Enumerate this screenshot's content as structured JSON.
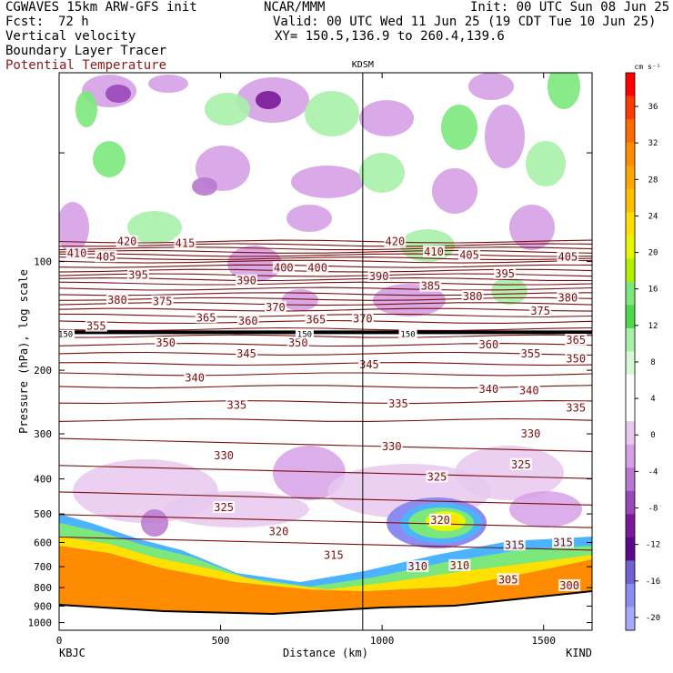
{
  "header": {
    "model": "CGWAVES 15km ARW-GFS init",
    "org": "NCAR/MMM",
    "init": "Init: 00 UTC Sun 08 Jun 25",
    "fcst_label": "Fcst:",
    "fcst_value": "72 h",
    "valid": "Valid: 00 UTC Wed 11 Jun 25 (19 CDT Tue 10 Jun 25)",
    "xy": "XY= 150.5,136.9 to 260.4,139.6",
    "field1": "Vertical velocity",
    "field2": "Boundary Layer Tracer",
    "field3": "Potential Temperature",
    "field3_color": "#8b1a1a"
  },
  "chart_data": {
    "type": "heatmap",
    "title": "KDSM",
    "xlabel": "Distance (km)",
    "ylabel": "Pressure (hPa), log scale",
    "x_ticks": [
      0,
      500,
      1000,
      1500
    ],
    "xlim": [
      0,
      1650
    ],
    "y_ticks": [
      100,
      200,
      300,
      400,
      500,
      600,
      700,
      800,
      900,
      1000
    ],
    "ylim": [
      1050,
      30
    ],
    "y_scale": "log",
    "x_start_label": "KBJC",
    "x_end_label": "KIND",
    "marker_line_x_km": 940,
    "colorbar": {
      "unit": "cm s⁻¹",
      "ticks": [
        36,
        32,
        28,
        24,
        20,
        16,
        12,
        8,
        4,
        0,
        -4,
        -8,
        -12,
        -16,
        -20
      ],
      "colors": [
        "#ff0000",
        "#ff3a00",
        "#ff6a00",
        "#ff8c00",
        "#ffa500",
        "#ffbf00",
        "#ffe000",
        "#e6f500",
        "#b0f000",
        "#7ce87c",
        "#4cd94c",
        "#a9f0a9",
        "#d8f8d8",
        "#ffffff",
        "#ffffff",
        "#e8c8f0",
        "#d6a0e6",
        "#b878d0",
        "#9848b8",
        "#7a1a9a",
        "#5a0a88",
        "#7060d0",
        "#8c8cf0",
        "#a8a8ff"
      ]
    },
    "theta_labels": [
      {
        "v": "420",
        "x": 210,
        "p": 88
      },
      {
        "v": "415",
        "x": 390,
        "p": 89
      },
      {
        "v": "410",
        "x": 55,
        "p": 95
      },
      {
        "v": "405",
        "x": 145,
        "p": 97
      },
      {
        "v": "400",
        "x": 695,
        "p": 104
      },
      {
        "v": "400",
        "x": 800,
        "p": 104
      },
      {
        "v": "395",
        "x": 245,
        "p": 109
      },
      {
        "v": "390",
        "x": 580,
        "p": 113
      },
      {
        "v": "380",
        "x": 180,
        "p": 128
      },
      {
        "v": "375",
        "x": 320,
        "p": 129
      },
      {
        "v": "370",
        "x": 670,
        "p": 134
      },
      {
        "v": "365",
        "x": 455,
        "p": 143
      },
      {
        "v": "360",
        "x": 585,
        "p": 146
      },
      {
        "v": "365",
        "x": 795,
        "p": 145
      },
      {
        "v": "370",
        "x": 940,
        "p": 144
      },
      {
        "v": "355",
        "x": 115,
        "p": 151
      },
      {
        "v": "350",
        "x": 330,
        "p": 168
      },
      {
        "v": "345",
        "x": 580,
        "p": 180
      },
      {
        "v": "350",
        "x": 740,
        "p": 168
      },
      {
        "v": "420",
        "x": 1040,
        "p": 88
      },
      {
        "v": "410",
        "x": 1160,
        "p": 94
      },
      {
        "v": "405",
        "x": 1270,
        "p": 96
      },
      {
        "v": "395",
        "x": 1380,
        "p": 108
      },
      {
        "v": "405",
        "x": 1575,
        "p": 97
      },
      {
        "v": "390",
        "x": 990,
        "p": 110
      },
      {
        "v": "385",
        "x": 1150,
        "p": 117
      },
      {
        "v": "380",
        "x": 1280,
        "p": 125
      },
      {
        "v": "375",
        "x": 1490,
        "p": 137
      },
      {
        "v": "380",
        "x": 1575,
        "p": 126
      },
      {
        "v": "365",
        "x": 1600,
        "p": 165
      },
      {
        "v": "360",
        "x": 1330,
        "p": 170
      },
      {
        "v": "355",
        "x": 1460,
        "p": 180
      },
      {
        "v": "350",
        "x": 1600,
        "p": 186
      },
      {
        "v": "345",
        "x": 960,
        "p": 193
      },
      {
        "v": "340",
        "x": 420,
        "p": 210
      },
      {
        "v": "340",
        "x": 1330,
        "p": 226
      },
      {
        "v": "340",
        "x": 1455,
        "p": 228
      },
      {
        "v": "335",
        "x": 550,
        "p": 250
      },
      {
        "v": "335",
        "x": 1050,
        "p": 248
      },
      {
        "v": "335",
        "x": 1600,
        "p": 254
      },
      {
        "v": "330",
        "x": 510,
        "p": 345
      },
      {
        "v": "330",
        "x": 1030,
        "p": 325
      },
      {
        "v": "330",
        "x": 1460,
        "p": 300
      },
      {
        "v": "325",
        "x": 510,
        "p": 480
      },
      {
        "v": "325",
        "x": 1170,
        "p": 395
      },
      {
        "v": "325",
        "x": 1430,
        "p": 365
      },
      {
        "v": "320",
        "x": 680,
        "p": 560
      },
      {
        "v": "320",
        "x": 1180,
        "p": 520
      },
      {
        "v": "315",
        "x": 850,
        "p": 650
      },
      {
        "v": "315",
        "x": 1410,
        "p": 610
      },
      {
        "v": "315",
        "x": 1560,
        "p": 600
      },
      {
        "v": "310",
        "x": 1110,
        "p": 700
      },
      {
        "v": "310",
        "x": 1240,
        "p": 695
      },
      {
        "v": "305",
        "x": 1390,
        "p": 760
      },
      {
        "v": "300",
        "x": 1580,
        "p": 790
      }
    ],
    "bl_tracer_labels": [
      {
        "v": "150",
        "x": 20,
        "p": 159
      },
      {
        "v": "150",
        "x": 760,
        "p": 159
      },
      {
        "v": "150",
        "x": 1080,
        "p": 159
      }
    ]
  }
}
